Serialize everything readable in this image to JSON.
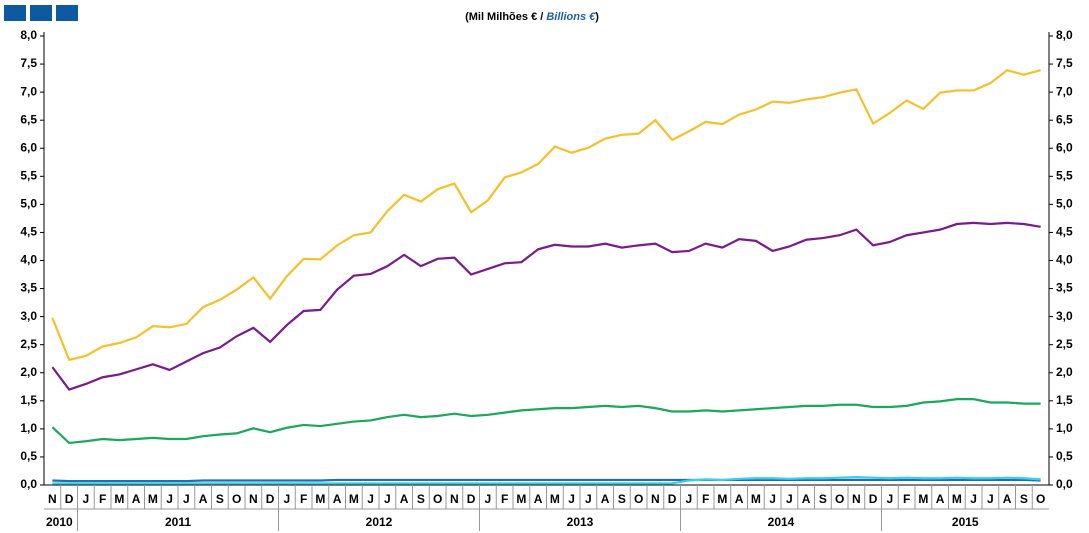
{
  "chart_data": {
    "type": "line",
    "subtitle_parts": [
      "(Mil Milhões € / ",
      "Billions €",
      ")"
    ],
    "categories": [
      "N",
      "D",
      "J",
      "F",
      "M",
      "A",
      "M",
      "J",
      "J",
      "A",
      "S",
      "O",
      "N",
      "D",
      "J",
      "F",
      "M",
      "A",
      "M",
      "J",
      "J",
      "A",
      "S",
      "O",
      "N",
      "D",
      "J",
      "F",
      "M",
      "A",
      "M",
      "J",
      "J",
      "A",
      "S",
      "O",
      "N",
      "D",
      "J",
      "F",
      "M",
      "A",
      "M",
      "J",
      "J",
      "A",
      "S",
      "O",
      "N",
      "D",
      "J",
      "F",
      "M",
      "A",
      "M",
      "J",
      "J",
      "A",
      "S",
      "O"
    ],
    "years": [
      "2010",
      "2011",
      "2012",
      "2013",
      "2014",
      "2015"
    ],
    "ylim": [
      0,
      8
    ],
    "yticks": [
      {
        "value": 0,
        "label": "0,0"
      },
      {
        "value": 0.5,
        "label": "0,5"
      },
      {
        "value": 1,
        "label": "1,0"
      },
      {
        "value": 1.5,
        "label": "1,5"
      },
      {
        "value": 2,
        "label": "2,0"
      },
      {
        "value": 2.5,
        "label": "2,5"
      },
      {
        "value": 3,
        "label": "3,0"
      },
      {
        "value": 3.5,
        "label": "3,5"
      },
      {
        "value": 4,
        "label": "4,0"
      },
      {
        "value": 4.5,
        "label": "4,5"
      },
      {
        "value": 5,
        "label": "5,0"
      },
      {
        "value": 5.5,
        "label": "5,5"
      },
      {
        "value": 6,
        "label": "6,0"
      },
      {
        "value": 6.5,
        "label": "6,5"
      },
      {
        "value": 7,
        "label": "7,0"
      },
      {
        "value": 7.5,
        "label": "7,5"
      },
      {
        "value": 8,
        "label": "8,0"
      }
    ],
    "y2lim": [
      0,
      8
    ],
    "y2ticks": [
      {
        "value": 0,
        "label": "0,0"
      },
      {
        "value": 0.5,
        "label": "0,5"
      },
      {
        "value": 1,
        "label": "1,0"
      },
      {
        "value": 1.5,
        "label": "1,5"
      },
      {
        "value": 2,
        "label": "2,0"
      },
      {
        "value": 2.5,
        "label": "2,5"
      },
      {
        "value": 3,
        "label": "3,0"
      },
      {
        "value": 3.5,
        "label": "3,5"
      },
      {
        "value": 4,
        "label": "4,0"
      },
      {
        "value": 4.5,
        "label": "4,5"
      },
      {
        "value": 5,
        "label": "5,0"
      },
      {
        "value": 5.5,
        "label": "5,5"
      },
      {
        "value": 6,
        "label": "6,0"
      },
      {
        "value": 6.5,
        "label": "6,5"
      },
      {
        "value": 7,
        "label": "7,0"
      },
      {
        "value": 7.5,
        "label": "7,5"
      },
      {
        "value": 8,
        "label": "8,0"
      }
    ],
    "series": [
      {
        "color": "#1f6fb5",
        "values": [
          0.08,
          0.07,
          0.07,
          0.07,
          0.07,
          0.07,
          0.07,
          0.07,
          0.07,
          0.08,
          0.08,
          0.08,
          0.08,
          0.08,
          0.08,
          0.08,
          0.08,
          0.09,
          0.09,
          0.09,
          0.09,
          0.09,
          0.09,
          0.09,
          0.09,
          0.09,
          0.09,
          0.09,
          0.09,
          0.09,
          0.09,
          0.09,
          0.09,
          0.09,
          0.09,
          0.09,
          0.09,
          0.09,
          0.09,
          0.09,
          0.09,
          0.09,
          0.09,
          0.09,
          0.09,
          0.09,
          0.09,
          0.09,
          0.09,
          0.09,
          0.09,
          0.09,
          0.09,
          0.09,
          0.09,
          0.09,
          0.09,
          0.09,
          0.09,
          0.08
        ]
      },
      {
        "color": "#38d0e8",
        "values": [
          0.03,
          0.03,
          0.03,
          0.03,
          0.03,
          0.03,
          0.03,
          0.03,
          0.03,
          0.03,
          0.03,
          0.03,
          0.03,
          0.03,
          0.03,
          0.03,
          0.03,
          0.03,
          0.03,
          0.03,
          0.03,
          0.03,
          0.03,
          0.03,
          0.03,
          0.03,
          0.03,
          0.03,
          0.03,
          0.03,
          0.03,
          0.03,
          0.03,
          0.03,
          0.03,
          0.03,
          0.03,
          0.03,
          0.08,
          0.1,
          0.09,
          0.11,
          0.12,
          0.12,
          0.11,
          0.12,
          0.12,
          0.13,
          0.14,
          0.13,
          0.12,
          0.13,
          0.12,
          0.12,
          0.13,
          0.12,
          0.12,
          0.13,
          0.12,
          0.1
        ]
      },
      {
        "color": "#1aa85a",
        "values": [
          1.03,
          0.75,
          0.78,
          0.82,
          0.8,
          0.82,
          0.84,
          0.82,
          0.82,
          0.87,
          0.9,
          0.92,
          1.01,
          0.94,
          1.02,
          1.07,
          1.05,
          1.09,
          1.13,
          1.15,
          1.21,
          1.25,
          1.21,
          1.23,
          1.27,
          1.23,
          1.25,
          1.29,
          1.33,
          1.35,
          1.37,
          1.37,
          1.39,
          1.41,
          1.39,
          1.41,
          1.37,
          1.31,
          1.31,
          1.33,
          1.31,
          1.33,
          1.35,
          1.37,
          1.39,
          1.41,
          1.41,
          1.43,
          1.43,
          1.39,
          1.39,
          1.41,
          1.47,
          1.49,
          1.53,
          1.53,
          1.47,
          1.47,
          1.45,
          1.45
        ]
      },
      {
        "color": "#7b1a8c",
        "values": [
          2.1,
          1.7,
          1.8,
          1.92,
          1.97,
          2.06,
          2.15,
          2.05,
          2.2,
          2.35,
          2.45,
          2.65,
          2.8,
          2.55,
          2.85,
          3.1,
          3.12,
          3.48,
          3.73,
          3.76,
          3.9,
          4.1,
          3.9,
          4.03,
          4.05,
          3.75,
          3.85,
          3.95,
          3.97,
          4.2,
          4.28,
          4.25,
          4.25,
          4.3,
          4.23,
          4.27,
          4.3,
          4.15,
          4.17,
          4.3,
          4.23,
          4.38,
          4.35,
          4.17,
          4.25,
          4.37,
          4.4,
          4.45,
          4.55,
          4.27,
          4.33,
          4.45,
          4.5,
          4.55,
          4.65,
          4.67,
          4.65,
          4.67,
          4.65,
          4.6
        ]
      },
      {
        "color": "#f5c02a",
        "values": [
          2.98,
          2.23,
          2.3,
          2.47,
          2.53,
          2.63,
          2.83,
          2.81,
          2.87,
          3.17,
          3.3,
          3.48,
          3.7,
          3.32,
          3.72,
          4.03,
          4.02,
          4.27,
          4.45,
          4.5,
          4.88,
          5.17,
          5.05,
          5.27,
          5.37,
          4.86,
          5.07,
          5.48,
          5.57,
          5.72,
          6.03,
          5.92,
          6.01,
          6.17,
          6.24,
          6.26,
          6.5,
          6.15,
          6.3,
          6.47,
          6.43,
          6.6,
          6.69,
          6.83,
          6.81,
          6.87,
          6.91,
          6.99,
          7.05,
          6.44,
          6.63,
          6.85,
          6.7,
          6.99,
          7.03,
          7.03,
          7.16,
          7.39,
          7.31,
          7.39
        ]
      }
    ]
  }
}
